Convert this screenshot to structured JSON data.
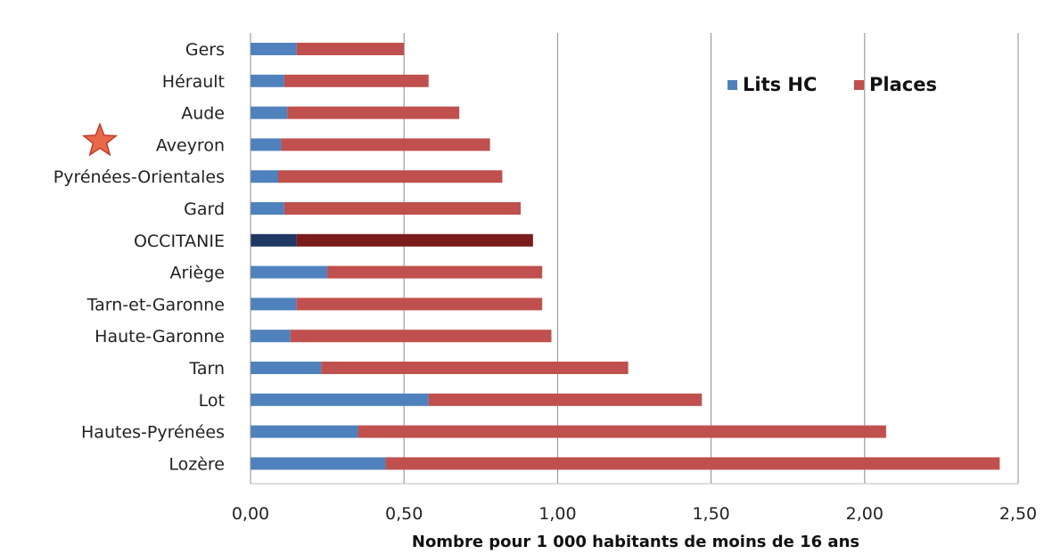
{
  "chart_data": {
    "type": "bar",
    "orientation": "horizontal",
    "stacked": true,
    "categories": [
      "Gers",
      "Hérault",
      "Aude",
      "Aveyron",
      "Pyrénées-Orientales",
      "Gard",
      "OCCITANIE",
      "Ariège",
      "Tarn-et-Garonne",
      "Haute-Garonne",
      "Tarn",
      "Lot",
      "Hautes-Pyrénées",
      "Lozère"
    ],
    "series": [
      {
        "name": "Lits HC",
        "color": "#4f81bd",
        "values": [
          0.15,
          0.11,
          0.12,
          0.1,
          0.09,
          0.11,
          0.15,
          0.25,
          0.15,
          0.13,
          0.23,
          0.58,
          0.35,
          0.44
        ]
      },
      {
        "name": "Places",
        "color": "#c0504d",
        "values": [
          0.35,
          0.47,
          0.56,
          0.68,
          0.73,
          0.77,
          0.77,
          0.7,
          0.8,
          0.85,
          1.0,
          0.89,
          1.72,
          2.0
        ]
      }
    ],
    "highlight": {
      "category": "OCCITANIE",
      "colors": [
        "#1f3864",
        "#7b1c1c"
      ]
    },
    "marked_category": "Aveyron",
    "marker_icon": "star-icon",
    "xlim": [
      0,
      2.5
    ],
    "x_ticks": [
      "0,00",
      "0,50",
      "1,00",
      "1,50",
      "2,00",
      "2,50"
    ],
    "xlabel": "Nombre pour 1 000 habitants de moins de 16 ans",
    "ylabel": "",
    "title": "",
    "grid": "vertical",
    "legend_position": "top-right",
    "legend": [
      {
        "label": "Lits HC",
        "color": "#4f81bd"
      },
      {
        "label": "Places",
        "color": "#c0504d"
      }
    ]
  }
}
